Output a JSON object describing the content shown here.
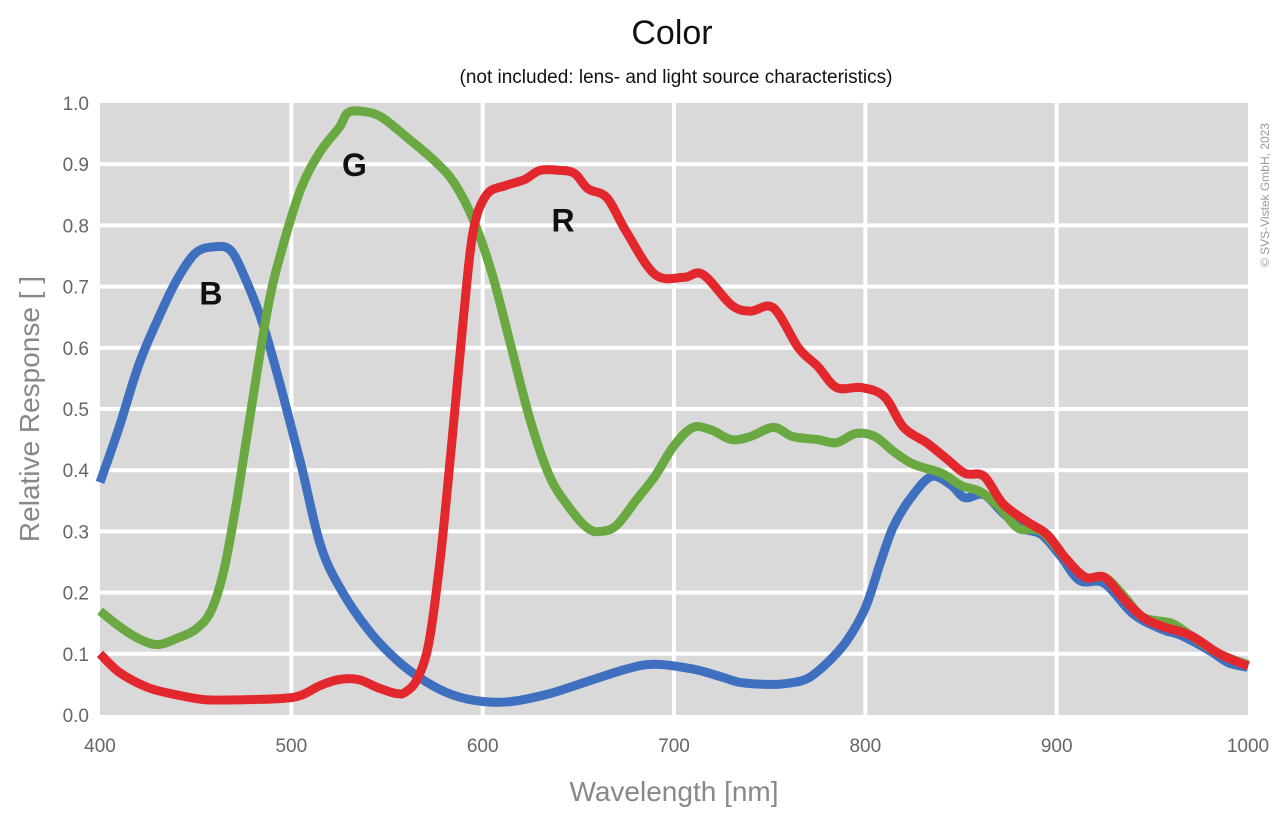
{
  "chart_data": {
    "type": "line",
    "title": "Color",
    "subtitle": "(not included: lens- and light source characteristics)",
    "xlabel": "Wavelength [nm]",
    "ylabel": "Relative Response [ ]",
    "xlim": [
      400,
      1000
    ],
    "ylim": [
      0.0,
      1.0
    ],
    "x_ticks": [
      "400",
      "500",
      "600",
      "700",
      "800",
      "900",
      "1000"
    ],
    "y_ticks": [
      "0.0",
      "0.1",
      "0.2",
      "0.3",
      "0.4",
      "0.5",
      "0.6",
      "0.7",
      "0.8",
      "0.9",
      "1.0"
    ],
    "grid": true,
    "background_color": "#d9d9d9",
    "grid_color": "#ffffff",
    "copyright": "© SVS-Vistek GmbH, 2023",
    "series": [
      {
        "name": "B",
        "color": "#3f6fbf",
        "label_at": [
          458,
          0.69
        ],
        "points": [
          [
            400,
            0.38
          ],
          [
            410,
            0.47
          ],
          [
            420,
            0.57
          ],
          [
            430,
            0.645
          ],
          [
            440,
            0.71
          ],
          [
            450,
            0.755
          ],
          [
            460,
            0.765
          ],
          [
            468,
            0.76
          ],
          [
            475,
            0.72
          ],
          [
            485,
            0.64
          ],
          [
            495,
            0.53
          ],
          [
            505,
            0.41
          ],
          [
            515,
            0.28
          ],
          [
            525,
            0.21
          ],
          [
            540,
            0.14
          ],
          [
            555,
            0.09
          ],
          [
            570,
            0.055
          ],
          [
            585,
            0.032
          ],
          [
            600,
            0.022
          ],
          [
            615,
            0.022
          ],
          [
            635,
            0.035
          ],
          [
            655,
            0.055
          ],
          [
            675,
            0.075
          ],
          [
            690,
            0.083
          ],
          [
            710,
            0.075
          ],
          [
            725,
            0.062
          ],
          [
            735,
            0.053
          ],
          [
            750,
            0.05
          ],
          [
            760,
            0.052
          ],
          [
            770,
            0.06
          ],
          [
            780,
            0.085
          ],
          [
            790,
            0.12
          ],
          [
            800,
            0.175
          ],
          [
            808,
            0.25
          ],
          [
            815,
            0.31
          ],
          [
            825,
            0.36
          ],
          [
            835,
            0.39
          ],
          [
            845,
            0.375
          ],
          [
            852,
            0.355
          ],
          [
            862,
            0.36
          ],
          [
            872,
            0.33
          ],
          [
            882,
            0.305
          ],
          [
            892,
            0.295
          ],
          [
            902,
            0.26
          ],
          [
            912,
            0.22
          ],
          [
            925,
            0.215
          ],
          [
            940,
            0.165
          ],
          [
            955,
            0.14
          ],
          [
            965,
            0.13
          ],
          [
            980,
            0.105
          ],
          [
            990,
            0.085
          ],
          [
            1000,
            0.078
          ]
        ]
      },
      {
        "name": "G",
        "color": "#6aa842",
        "label_at": [
          533,
          0.9
        ],
        "points": [
          [
            400,
            0.17
          ],
          [
            410,
            0.145
          ],
          [
            420,
            0.125
          ],
          [
            430,
            0.115
          ],
          [
            440,
            0.125
          ],
          [
            450,
            0.14
          ],
          [
            458,
            0.17
          ],
          [
            465,
            0.24
          ],
          [
            472,
            0.36
          ],
          [
            480,
            0.52
          ],
          [
            488,
            0.67
          ],
          [
            495,
            0.76
          ],
          [
            505,
            0.86
          ],
          [
            515,
            0.92
          ],
          [
            525,
            0.96
          ],
          [
            530,
            0.985
          ],
          [
            540,
            0.985
          ],
          [
            548,
            0.975
          ],
          [
            560,
            0.945
          ],
          [
            575,
            0.905
          ],
          [
            585,
            0.87
          ],
          [
            595,
            0.81
          ],
          [
            605,
            0.72
          ],
          [
            615,
            0.6
          ],
          [
            625,
            0.48
          ],
          [
            635,
            0.39
          ],
          [
            645,
            0.34
          ],
          [
            655,
            0.305
          ],
          [
            662,
            0.3
          ],
          [
            670,
            0.31
          ],
          [
            680,
            0.35
          ],
          [
            690,
            0.39
          ],
          [
            700,
            0.44
          ],
          [
            710,
            0.47
          ],
          [
            720,
            0.465
          ],
          [
            730,
            0.45
          ],
          [
            740,
            0.455
          ],
          [
            752,
            0.47
          ],
          [
            762,
            0.455
          ],
          [
            775,
            0.45
          ],
          [
            785,
            0.445
          ],
          [
            795,
            0.46
          ],
          [
            805,
            0.455
          ],
          [
            815,
            0.43
          ],
          [
            825,
            0.41
          ],
          [
            840,
            0.395
          ],
          [
            850,
            0.375
          ],
          [
            860,
            0.365
          ],
          [
            870,
            0.34
          ],
          [
            880,
            0.305
          ],
          [
            892,
            0.3
          ],
          [
            905,
            0.255
          ],
          [
            915,
            0.225
          ],
          [
            925,
            0.225
          ],
          [
            935,
            0.195
          ],
          [
            945,
            0.16
          ],
          [
            960,
            0.15
          ],
          [
            970,
            0.13
          ],
          [
            985,
            0.1
          ],
          [
            1000,
            0.082
          ]
        ]
      },
      {
        "name": "R",
        "color": "#e3282d",
        "label_at": [
          642,
          0.81
        ],
        "points": [
          [
            400,
            0.1
          ],
          [
            410,
            0.07
          ],
          [
            425,
            0.045
          ],
          [
            440,
            0.033
          ],
          [
            455,
            0.025
          ],
          [
            475,
            0.025
          ],
          [
            495,
            0.027
          ],
          [
            505,
            0.032
          ],
          [
            515,
            0.048
          ],
          [
            525,
            0.058
          ],
          [
            535,
            0.058
          ],
          [
            545,
            0.045
          ],
          [
            555,
            0.035
          ],
          [
            560,
            0.038
          ],
          [
            566,
            0.06
          ],
          [
            572,
            0.12
          ],
          [
            578,
            0.26
          ],
          [
            584,
            0.45
          ],
          [
            590,
            0.65
          ],
          [
            595,
            0.79
          ],
          [
            602,
            0.85
          ],
          [
            612,
            0.865
          ],
          [
            622,
            0.875
          ],
          [
            630,
            0.89
          ],
          [
            640,
            0.89
          ],
          [
            648,
            0.885
          ],
          [
            655,
            0.86
          ],
          [
            665,
            0.845
          ],
          [
            675,
            0.79
          ],
          [
            690,
            0.72
          ],
          [
            705,
            0.715
          ],
          [
            715,
            0.72
          ],
          [
            730,
            0.67
          ],
          [
            740,
            0.66
          ],
          [
            752,
            0.665
          ],
          [
            765,
            0.6
          ],
          [
            775,
            0.57
          ],
          [
            785,
            0.535
          ],
          [
            798,
            0.535
          ],
          [
            810,
            0.52
          ],
          [
            820,
            0.47
          ],
          [
            832,
            0.445
          ],
          [
            842,
            0.42
          ],
          [
            852,
            0.395
          ],
          [
            862,
            0.39
          ],
          [
            872,
            0.345
          ],
          [
            885,
            0.315
          ],
          [
            895,
            0.295
          ],
          [
            905,
            0.255
          ],
          [
            915,
            0.225
          ],
          [
            925,
            0.225
          ],
          [
            935,
            0.19
          ],
          [
            945,
            0.16
          ],
          [
            955,
            0.145
          ],
          [
            970,
            0.13
          ],
          [
            985,
            0.1
          ],
          [
            1000,
            0.08
          ]
        ]
      }
    ]
  }
}
